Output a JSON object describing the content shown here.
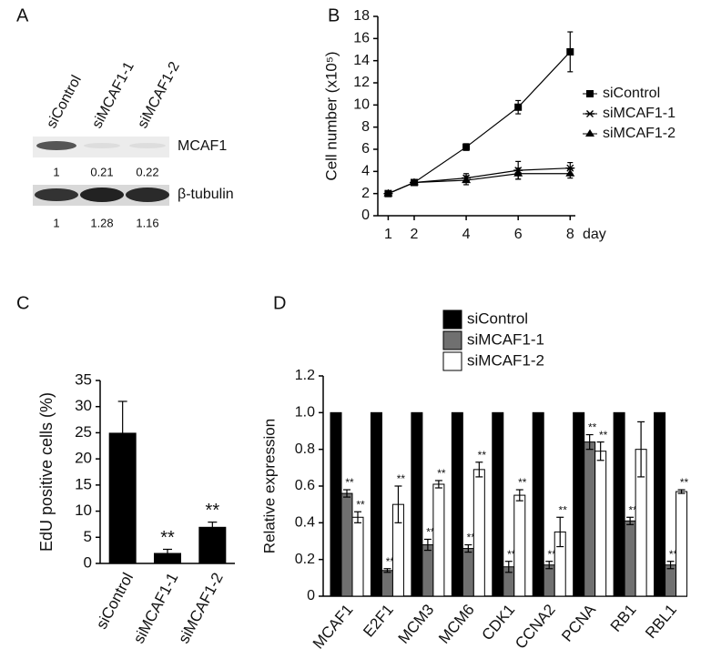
{
  "panel_labels": [
    "A",
    "B",
    "C",
    "D"
  ],
  "blot": {
    "lanes": [
      "siControl",
      "siMCAF1-1",
      "siMCAF1-2"
    ],
    "rows": [
      {
        "label": "MCAF1",
        "quant": [
          "1",
          "0.21",
          "0.22"
        ]
      },
      {
        "label": "β-tubulin",
        "quant": [
          "1",
          "1.28",
          "1.16"
        ]
      }
    ]
  },
  "chart_data": [
    {
      "type": "line",
      "x_label": "day",
      "y_label": "Cell number (x10⁵)",
      "x": [
        1,
        2,
        4,
        6,
        8
      ],
      "xlim": [
        0.6,
        8.2
      ],
      "xticks": [
        1,
        2,
        4,
        6,
        8
      ],
      "ylim": [
        0,
        18
      ],
      "yticks": [
        0,
        2,
        4,
        6,
        8,
        10,
        12,
        14,
        16,
        18
      ],
      "series": [
        {
          "name": "siControl",
          "color": "#000000",
          "marker": "square",
          "values": [
            2,
            3,
            6.2,
            9.8,
            14.8
          ],
          "errors": [
            0.2,
            0.2,
            0.3,
            0.6,
            1.8
          ]
        },
        {
          "name": "siMCAF1-1",
          "color": "#000000",
          "marker": "star",
          "values": [
            2,
            3,
            3.4,
            4.1,
            4.3
          ],
          "errors": [
            0.2,
            0.2,
            0.4,
            0.8,
            0.5
          ]
        },
        {
          "name": "siMCAF1-2",
          "color": "#000000",
          "marker": "triangle",
          "values": [
            2,
            3,
            3.2,
            3.8,
            3.8
          ],
          "errors": [
            0.2,
            0.2,
            0.4,
            0.5,
            0.4
          ]
        }
      ]
    },
    {
      "type": "bar",
      "y_label": "EdU positive cells (%)",
      "categories": [
        "siControl",
        "siMCAF1-1",
        "siMCAF1-2"
      ],
      "values": [
        25,
        2,
        7
      ],
      "errors": [
        6,
        0.7,
        0.9
      ],
      "annotations": [
        null,
        "**",
        "**"
      ],
      "color": "#000000",
      "ylim": [
        0,
        35
      ],
      "yticks": [
        0,
        5,
        10,
        15,
        20,
        25,
        30,
        35
      ]
    },
    {
      "type": "grouped_bar",
      "y_label": "Relative expression",
      "categories": [
        "MCAF1",
        "E2F1",
        "MCM3",
        "MCM6",
        "CDK1",
        "CCNA2",
        "PCNA",
        "RB1",
        "RBL1"
      ],
      "ylim": [
        0,
        1.2
      ],
      "yticks": [
        0,
        0.2,
        0.4,
        0.6,
        0.8,
        {
          "value": 1,
          "label": "1.0"
        },
        1.2
      ],
      "series": [
        {
          "name": "siControl",
          "color": "#000000",
          "values": [
            1,
            1,
            1,
            1,
            1,
            1,
            1,
            1,
            1
          ]
        },
        {
          "name": "siMCAF1-1",
          "color": "#707070",
          "values": [
            0.56,
            0.14,
            0.28,
            0.26,
            0.16,
            0.17,
            0.84,
            0.41,
            0.17
          ],
          "errors": [
            0.02,
            0.01,
            0.03,
            0.02,
            0.03,
            0.02,
            0.04,
            0.02,
            0.02
          ],
          "significance": [
            "**",
            "**",
            "**",
            "**",
            "**",
            "**",
            "**",
            "**",
            "**"
          ]
        },
        {
          "name": "siMCAF1-2",
          "color": "#ffffff",
          "values": [
            0.43,
            0.5,
            0.61,
            0.69,
            0.55,
            0.35,
            0.79,
            0.8,
            0.57
          ],
          "errors": [
            0.03,
            0.1,
            0.02,
            0.04,
            0.03,
            0.08,
            0.05,
            0.15,
            0.01
          ],
          "significance": [
            "**",
            "**",
            "**",
            "**",
            "**",
            "**",
            "**",
            null,
            "**"
          ]
        }
      ]
    }
  ]
}
